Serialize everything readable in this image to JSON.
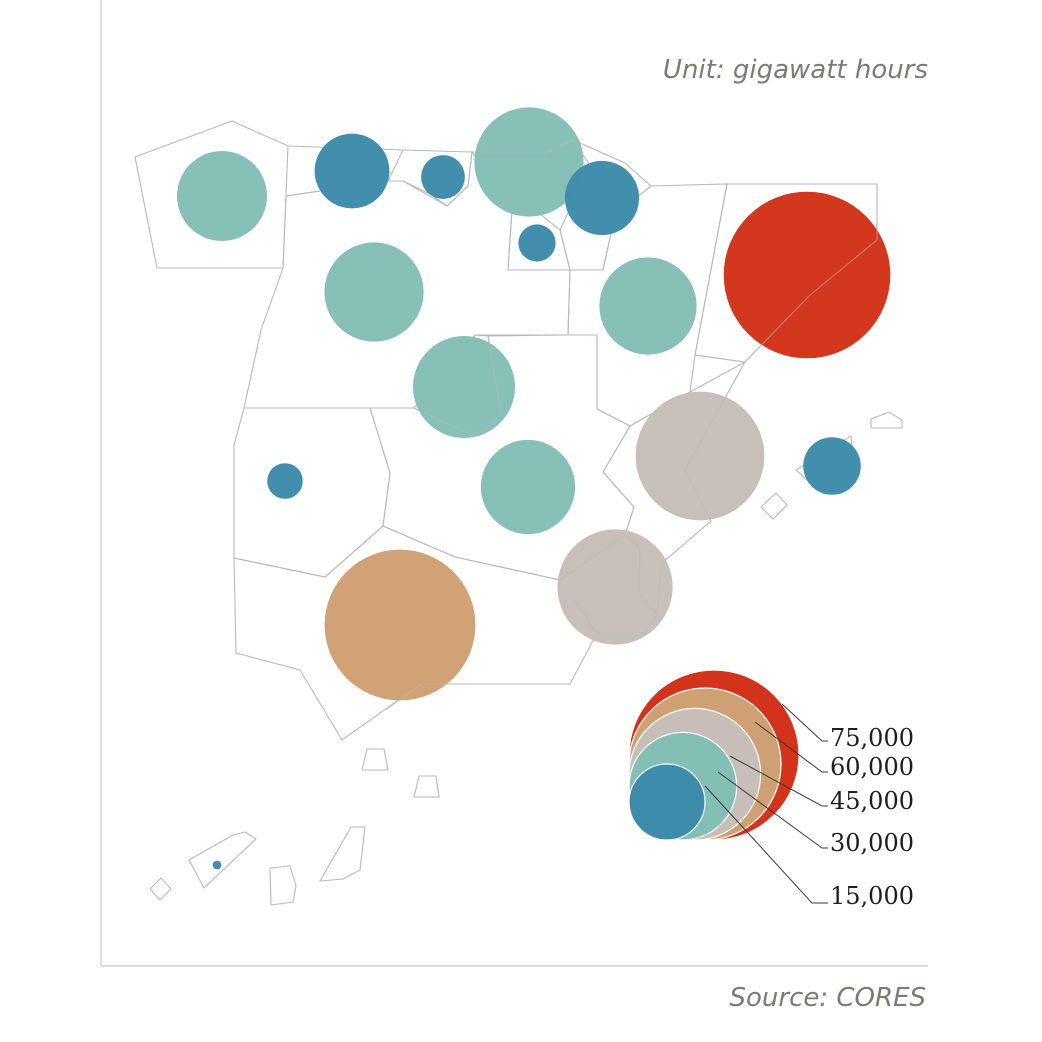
{
  "header": {
    "unit": "Unit: gigawatt hours"
  },
  "footer": {
    "source": "Source: CORES"
  },
  "colors": {
    "band_15000": "#3e8cab",
    "band_30000": "#84bfb5",
    "band_45000": "#c5bfb7",
    "band_60000": "#cfa073",
    "band_75000": "#d2331a",
    "region_outline": "#b9b9b9"
  },
  "legend": {
    "title": "",
    "items": [
      {
        "label": "75,000",
        "value": 75000,
        "color": "#d2331a"
      },
      {
        "label": "60,000",
        "value": 60000,
        "color": "#cfa073"
      },
      {
        "label": "45,000",
        "value": 45000,
        "color": "#c5bfb7"
      },
      {
        "label": "30,000",
        "value": 30000,
        "color": "#84bfb5"
      },
      {
        "label": "15,000",
        "value": 15000,
        "color": "#3e8cab"
      }
    ]
  },
  "chart_data": {
    "type": "bubble-map",
    "unit": "gigawatt hours",
    "size_scale": "area proportional to value",
    "legend_values": [
      75000,
      60000,
      45000,
      30000,
      15000
    ],
    "regions": [
      {
        "id": "galicia",
        "value": 21000,
        "color": "#84bfb5"
      },
      {
        "id": "asturias",
        "value": 14500,
        "color": "#3e8cab"
      },
      {
        "id": "cantabria",
        "value": 5000,
        "color": "#3e8cab"
      },
      {
        "id": "pais-vasco",
        "value": 31000,
        "color": "#84bfb5"
      },
      {
        "id": "navarra",
        "value": 14300,
        "color": "#3e8cab"
      },
      {
        "id": "la-rioja",
        "value": 3600,
        "color": "#3e8cab"
      },
      {
        "id": "castilla-y-leon",
        "value": 25500,
        "color": "#84bfb5"
      },
      {
        "id": "aragon",
        "value": 24500,
        "color": "#84bfb5"
      },
      {
        "id": "cataluna",
        "value": 72000,
        "color": "#d2331a"
      },
      {
        "id": "madrid",
        "value": 27000,
        "color": "#84bfb5"
      },
      {
        "id": "extremadura",
        "value": 3300,
        "color": "#3e8cab"
      },
      {
        "id": "castilla-la-mancha",
        "value": 23000,
        "color": "#84bfb5"
      },
      {
        "id": "comunidad-valenciana",
        "value": 43000,
        "color": "#c5bfb7"
      },
      {
        "id": "islas-baleares",
        "value": 8600,
        "color": "#3e8cab"
      },
      {
        "id": "murcia",
        "value": 34500,
        "color": "#c5bfb7"
      },
      {
        "id": "andalucia",
        "value": 59000,
        "color": "#cfa073"
      },
      {
        "id": "canarias",
        "value": 200,
        "color": "#3e8cab"
      }
    ]
  }
}
